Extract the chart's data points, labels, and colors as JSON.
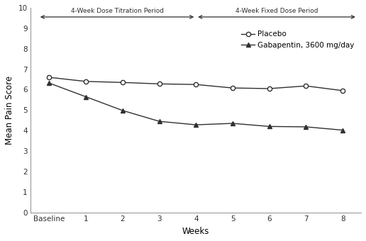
{
  "placebo_x": [
    0,
    1,
    2,
    3,
    4,
    5,
    6,
    7,
    8
  ],
  "placebo_y": [
    6.6,
    6.4,
    6.35,
    6.28,
    6.25,
    6.08,
    6.05,
    6.18,
    5.95
  ],
  "gabapentin_x": [
    0,
    1,
    2,
    3,
    4,
    5,
    6,
    7,
    8
  ],
  "gabapentin_y": [
    6.32,
    5.65,
    4.98,
    4.45,
    4.28,
    4.35,
    4.2,
    4.18,
    4.02
  ],
  "xlabel": "Weeks",
  "ylabel": "Mean Pain Score",
  "ylim": [
    0,
    10
  ],
  "yticks": [
    0,
    1,
    2,
    3,
    4,
    5,
    6,
    7,
    8,
    9,
    10
  ],
  "xtick_labels": [
    "Baseline",
    "1",
    "2",
    "3",
    "4",
    "5",
    "6",
    "7",
    "8"
  ],
  "legend_placebo": "Placebo",
  "legend_gabapentin": "Gabapentin, 3600 mg/day",
  "line_color": "#303030",
  "background_color": "#ffffff",
  "arrow1_label": "4-Week Dose Titration Period",
  "arrow2_label": "4-Week Fixed Dose Period"
}
